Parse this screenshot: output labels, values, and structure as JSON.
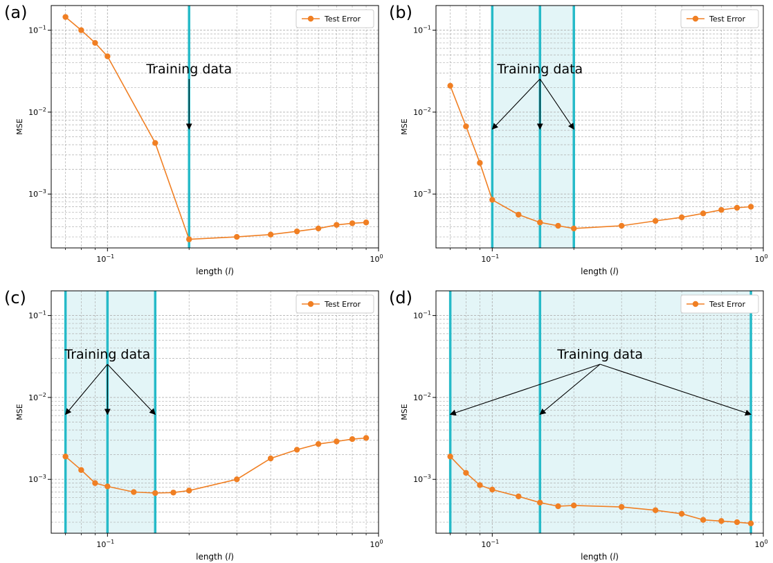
{
  "figure": {
    "xlabel_prefix": "length (",
    "xlabel_var": "l",
    "xlabel_suffix": ")",
    "ylabel": "MSE",
    "legend_label": "Test Error",
    "annotation": "Training data",
    "tick_base": "10",
    "xtick_exponents": [
      "−1",
      "0"
    ],
    "ytick_exponents": [
      "−3",
      "−2",
      "−1"
    ]
  },
  "colors": {
    "series": "#f07f23",
    "training_line": "#26bac8",
    "training_fill": "#e3f5f7",
    "grid": "#b0b0b0",
    "text": "#000000"
  },
  "chart_data": [
    {
      "panel_label": "(a)",
      "type": "line",
      "xscale": "log",
      "yscale": "log",
      "xlim": [
        0.062,
        1.0
      ],
      "ylim": [
        0.00022,
        0.2
      ],
      "grid": true,
      "legend_position": "top-right",
      "training_lengths": [
        0.2
      ],
      "training_band": false,
      "annotation_anchor": [
        0.2,
        0.062
      ],
      "series": [
        {
          "name": "Test Error",
          "x": [
            0.07,
            0.08,
            0.09,
            0.1,
            0.15,
            0.2,
            0.3,
            0.4,
            0.5,
            0.6,
            0.7,
            0.8,
            0.9
          ],
          "y": [
            0.145,
            0.1,
            0.07,
            0.048,
            0.0042,
            0.00028,
            0.0003,
            0.00032,
            0.00035,
            0.00038,
            0.00042,
            0.00044,
            0.00045
          ]
        }
      ]
    },
    {
      "panel_label": "(b)",
      "type": "line",
      "xscale": "log",
      "yscale": "log",
      "xlim": [
        0.062,
        1.0
      ],
      "ylim": [
        0.00022,
        0.2
      ],
      "grid": true,
      "legend_position": "top-right",
      "training_lengths": [
        0.1,
        0.15,
        0.2
      ],
      "training_band": true,
      "annotation_anchor": [
        0.15,
        0.062
      ],
      "series": [
        {
          "name": "Test Error",
          "x": [
            0.07,
            0.08,
            0.09,
            0.1,
            0.125,
            0.15,
            0.175,
            0.2,
            0.3,
            0.4,
            0.5,
            0.6,
            0.7,
            0.8,
            0.9
          ],
          "y": [
            0.021,
            0.0067,
            0.0024,
            0.00085,
            0.00056,
            0.00045,
            0.00041,
            0.00038,
            0.00041,
            0.00047,
            0.00052,
            0.00058,
            0.00064,
            0.00068,
            0.0007
          ]
        }
      ]
    },
    {
      "panel_label": "(c)",
      "type": "line",
      "xscale": "log",
      "yscale": "log",
      "xlim": [
        0.062,
        1.0
      ],
      "ylim": [
        0.00022,
        0.2
      ],
      "grid": true,
      "legend_position": "top-right",
      "training_lengths": [
        0.07,
        0.1,
        0.15
      ],
      "training_band": true,
      "annotation_anchor": [
        0.1,
        0.062
      ],
      "series": [
        {
          "name": "Test Error",
          "x": [
            0.07,
            0.08,
            0.09,
            0.1,
            0.125,
            0.15,
            0.175,
            0.2,
            0.3,
            0.4,
            0.5,
            0.6,
            0.7,
            0.8,
            0.9
          ],
          "y": [
            0.0019,
            0.0013,
            0.0009,
            0.00082,
            0.0007,
            0.00068,
            0.00069,
            0.00073,
            0.001,
            0.0018,
            0.0023,
            0.0027,
            0.0029,
            0.0031,
            0.0032
          ]
        }
      ]
    },
    {
      "panel_label": "(d)",
      "type": "line",
      "xscale": "log",
      "yscale": "log",
      "xlim": [
        0.062,
        1.0
      ],
      "ylim": [
        0.00022,
        0.2
      ],
      "grid": true,
      "legend_position": "top-right",
      "training_lengths": [
        0.07,
        0.15,
        0.9
      ],
      "training_band": true,
      "annotation_anchor": [
        0.25,
        0.062
      ],
      "series": [
        {
          "name": "Test Error",
          "x": [
            0.07,
            0.08,
            0.09,
            0.1,
            0.125,
            0.15,
            0.175,
            0.2,
            0.3,
            0.4,
            0.5,
            0.6,
            0.7,
            0.8,
            0.9
          ],
          "y": [
            0.0019,
            0.0012,
            0.00085,
            0.00075,
            0.00062,
            0.00052,
            0.00047,
            0.00048,
            0.00046,
            0.00042,
            0.00038,
            0.00032,
            0.00031,
            0.0003,
            0.00029
          ]
        }
      ]
    }
  ]
}
